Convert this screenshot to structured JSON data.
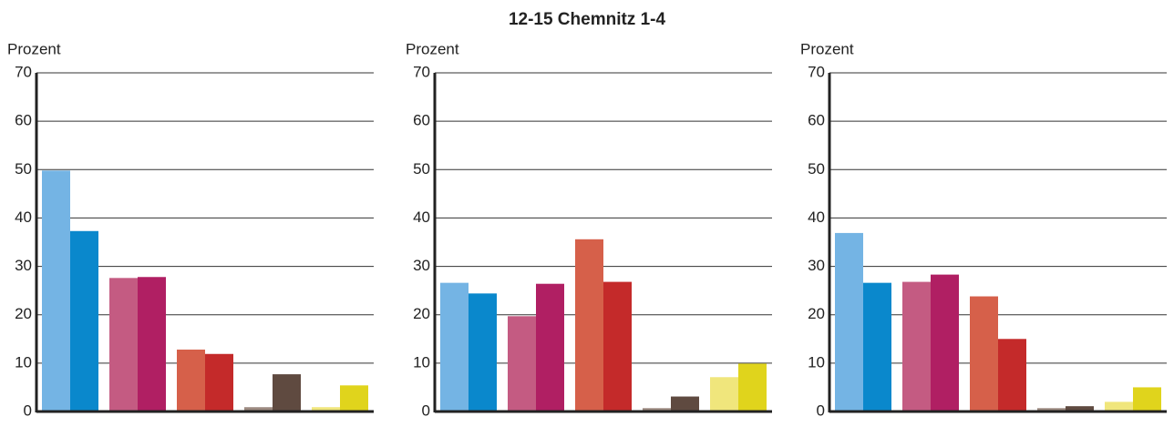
{
  "title": "12-15  Chemnitz 1-4",
  "chart_data": [
    {
      "type": "bar",
      "ylabel": "Prozent",
      "categories": [
        null,
        null,
        null,
        null,
        null,
        null,
        null,
        null,
        null,
        null
      ],
      "values": [
        49.8,
        37.3,
        27.6,
        27.8,
        12.8,
        11.9,
        0.9,
        7.7,
        0.9,
        5.4
      ],
      "colors": [
        "#74b4e4",
        "#0a88cc",
        "#c45b82",
        "#b01f63",
        "#d6604a",
        "#c42a2a",
        "#9c8a80",
        "#5f4a40",
        "#f0e67c",
        "#e0d41c"
      ],
      "ylim": [
        0,
        70
      ],
      "yticks": [
        0,
        10,
        20,
        30,
        40,
        50,
        60,
        70
      ],
      "grid": true
    },
    {
      "type": "bar",
      "ylabel": "Prozent",
      "categories": [
        null,
        null,
        null,
        null,
        null,
        null,
        null,
        null,
        null,
        null
      ],
      "values": [
        26.6,
        24.4,
        19.7,
        26.4,
        35.6,
        26.8,
        0.7,
        3.1,
        7.1,
        9.9
      ],
      "colors": [
        "#74b4e4",
        "#0a88cc",
        "#c45b82",
        "#b01f63",
        "#d6604a",
        "#c42a2a",
        "#9c8a80",
        "#5f4a40",
        "#f0e67c",
        "#e0d41c"
      ],
      "ylim": [
        0,
        70
      ],
      "yticks": [
        0,
        10,
        20,
        30,
        40,
        50,
        60,
        70
      ],
      "grid": true
    },
    {
      "type": "bar",
      "ylabel": "Prozent",
      "categories": [
        null,
        null,
        null,
        null,
        null,
        null,
        null,
        null,
        null,
        null
      ],
      "values": [
        36.9,
        26.6,
        26.8,
        28.3,
        23.8,
        15.0,
        0.7,
        1.1,
        2.0,
        5.0
      ],
      "colors": [
        "#74b4e4",
        "#0a88cc",
        "#c45b82",
        "#b01f63",
        "#d6604a",
        "#c42a2a",
        "#9c8a80",
        "#5f4a40",
        "#f0e67c",
        "#e0d41c"
      ],
      "ylim": [
        0,
        70
      ],
      "yticks": [
        0,
        10,
        20,
        30,
        40,
        50,
        60,
        70
      ],
      "grid": true
    }
  ]
}
